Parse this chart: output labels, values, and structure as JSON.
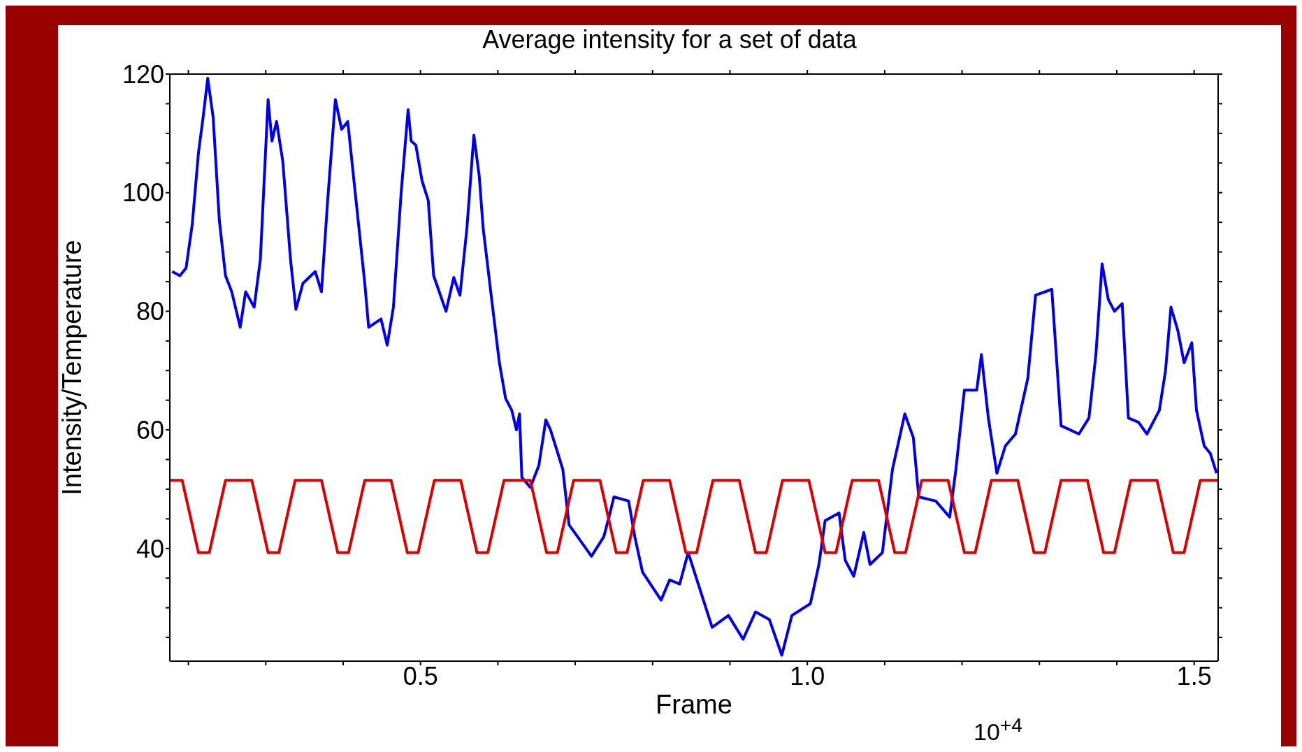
{
  "chart_data": {
    "type": "line",
    "title": "Average intensity for a set of data",
    "xlabel": "Frame",
    "ylabel": "Intensity/Temperature",
    "annotations": [
      "10$^{+4}$"
    ],
    "xlim": [
      0.176,
      1.531
    ],
    "ylim": [
      21,
      120
    ],
    "xticks": [
      {
        "value": 0.2,
        "label": null
      },
      {
        "value": 0.3,
        "label": null
      },
      {
        "value": 0.4,
        "label": null
      },
      0.5,
      {
        "value": 0.6,
        "label": null
      },
      {
        "value": 0.7,
        "label": null
      },
      {
        "value": 0.8,
        "label": null
      },
      {
        "value": 0.9,
        "label": null
      },
      {
        "value": 1.0,
        "label": "1.0"
      },
      {
        "value": 1.1,
        "label": null
      },
      {
        "value": 1.2,
        "label": null
      },
      {
        "value": 1.3,
        "label": null
      },
      {
        "value": 1.4,
        "label": null
      },
      1.5
    ],
    "yticks": [
      {
        "value": 25,
        "label": null
      },
      {
        "value": 30,
        "label": null
      },
      {
        "value": 35,
        "label": null
      },
      40,
      {
        "value": 45,
        "label": null
      },
      {
        "value": 50,
        "label": null
      },
      {
        "value": 55,
        "label": null
      },
      60,
      {
        "value": 65,
        "label": null
      },
      {
        "value": 70,
        "label": null
      },
      {
        "value": 75,
        "label": null
      },
      80,
      {
        "value": 85,
        "label": null
      },
      {
        "value": 90,
        "label": null
      },
      {
        "value": 95,
        "label": null
      },
      100,
      {
        "value": 105,
        "label": null
      },
      {
        "value": 110,
        "label": null
      },
      {
        "value": 115,
        "label": null
      },
      120
    ],
    "marker": "none",
    "line_style": "solid",
    "legend": false,
    "grid": false,
    "series": [
      {
        "color": "#0000ee",
        "x": [
          0.179,
          0.189,
          0.197,
          0.205,
          0.213,
          0.219,
          0.225,
          0.232,
          0.24,
          0.248,
          0.256,
          0.267,
          0.274,
          0.285,
          0.293,
          0.303,
          0.308,
          0.314,
          0.322,
          0.332,
          0.339,
          0.348,
          0.364,
          0.372,
          0.38,
          0.39,
          0.398,
          0.406,
          0.414,
          0.428,
          0.433,
          0.449,
          0.457,
          0.465,
          0.475,
          0.484,
          0.488,
          0.494,
          0.502,
          0.51,
          0.517,
          0.533,
          0.543,
          0.551,
          0.56,
          0.569,
          0.576,
          0.581,
          0.592,
          0.602,
          0.61,
          0.618,
          0.624,
          0.628,
          0.631,
          0.642,
          0.653,
          0.662,
          0.668,
          0.676,
          0.684,
          0.692,
          0.703,
          0.721,
          0.737,
          0.745,
          0.75,
          0.769,
          0.777,
          0.787,
          0.811,
          0.822,
          0.835,
          0.846,
          0.859,
          0.877,
          0.898,
          0.917,
          0.933,
          0.951,
          0.967,
          0.98,
          1.004,
          1.015,
          1.023,
          1.041,
          1.049,
          1.06,
          1.073,
          1.081,
          1.097,
          1.11,
          1.126,
          1.137,
          1.144,
          1.166,
          1.184,
          1.192,
          1.203,
          1.219,
          1.225,
          1.234,
          1.245,
          1.256,
          1.269,
          1.285,
          1.295,
          1.316,
          1.328,
          1.351,
          1.364,
          1.373,
          1.381,
          1.389,
          1.397,
          1.407,
          1.415,
          1.428,
          1.439,
          1.455,
          1.463,
          1.47,
          1.479,
          1.487,
          1.497,
          1.503,
          1.513,
          1.521,
          1.529
        ],
        "values": [
          86.7,
          86,
          87.3,
          94.7,
          106.7,
          112.7,
          119.3,
          112.7,
          95.3,
          86,
          83.3,
          77.3,
          83.3,
          80.7,
          88.7,
          115.7,
          108.7,
          112,
          105.3,
          88.7,
          80.3,
          84.7,
          86.7,
          83.3,
          98.7,
          115.7,
          110.7,
          112,
          102,
          84.7,
          77.3,
          78.7,
          74.3,
          80.7,
          100,
          114,
          108.7,
          108,
          102,
          98.7,
          86,
          80,
          85.7,
          82.7,
          94,
          109.7,
          102.7,
          94,
          82,
          71.3,
          65.3,
          63.3,
          60,
          62.7,
          52,
          50.3,
          54,
          61.7,
          60,
          56.7,
          53.3,
          44,
          42,
          38.7,
          42,
          46,
          48.7,
          48,
          42,
          36,
          31.3,
          34.7,
          34,
          39.3,
          34,
          26.7,
          28.7,
          24.7,
          29.3,
          28,
          22,
          28.7,
          30.7,
          37.3,
          44.7,
          46,
          38,
          35.3,
          42.7,
          37.3,
          39.3,
          53.3,
          62.7,
          58.7,
          48.7,
          48,
          45.3,
          53.3,
          66.7,
          66.7,
          72.7,
          62,
          52.7,
          57.3,
          59.3,
          68.7,
          82.7,
          83.7,
          60.7,
          59.3,
          62,
          72.7,
          88,
          82,
          80,
          81.3,
          62,
          61.3,
          59.3,
          63.3,
          70,
          80.7,
          76.7,
          71.3,
          74.7,
          63.3,
          57.3,
          56,
          52.7
        ]
      },
      {
        "color": "#dd0000",
        "x": [
          0.176,
          0.192,
          0.213,
          0.227,
          0.248,
          0.282,
          0.303,
          0.317,
          0.338,
          0.372,
          0.393,
          0.407,
          0.428,
          0.462,
          0.483,
          0.497,
          0.518,
          0.552,
          0.573,
          0.587,
          0.608,
          0.642,
          0.663,
          0.677,
          0.698,
          0.732,
          0.753,
          0.767,
          0.788,
          0.822,
          0.843,
          0.857,
          0.878,
          0.912,
          0.933,
          0.947,
          0.968,
          1.002,
          1.023,
          1.037,
          1.058,
          1.092,
          1.113,
          1.127,
          1.148,
          1.182,
          1.203,
          1.217,
          1.238,
          1.272,
          1.293,
          1.307,
          1.328,
          1.362,
          1.383,
          1.397,
          1.418,
          1.452,
          1.473,
          1.487,
          1.508,
          1.531
        ],
        "values": [
          51.5,
          51.5,
          39.3,
          39.3,
          51.5,
          51.5,
          39.3,
          39.3,
          51.5,
          51.5,
          39.3,
          39.3,
          51.5,
          51.5,
          39.3,
          39.3,
          51.5,
          51.5,
          39.3,
          39.3,
          51.5,
          51.5,
          39.3,
          39.3,
          51.5,
          51.5,
          39.3,
          39.3,
          51.5,
          51.5,
          39.3,
          39.3,
          51.5,
          51.5,
          39.3,
          39.3,
          51.5,
          51.5,
          39.3,
          39.3,
          51.5,
          51.5,
          39.3,
          39.3,
          51.5,
          51.5,
          39.3,
          39.3,
          51.5,
          51.5,
          39.3,
          39.3,
          51.5,
          51.5,
          39.3,
          39.3,
          51.5,
          51.5,
          39.3,
          39.3,
          51.5,
          51.5
        ]
      }
    ]
  }
}
